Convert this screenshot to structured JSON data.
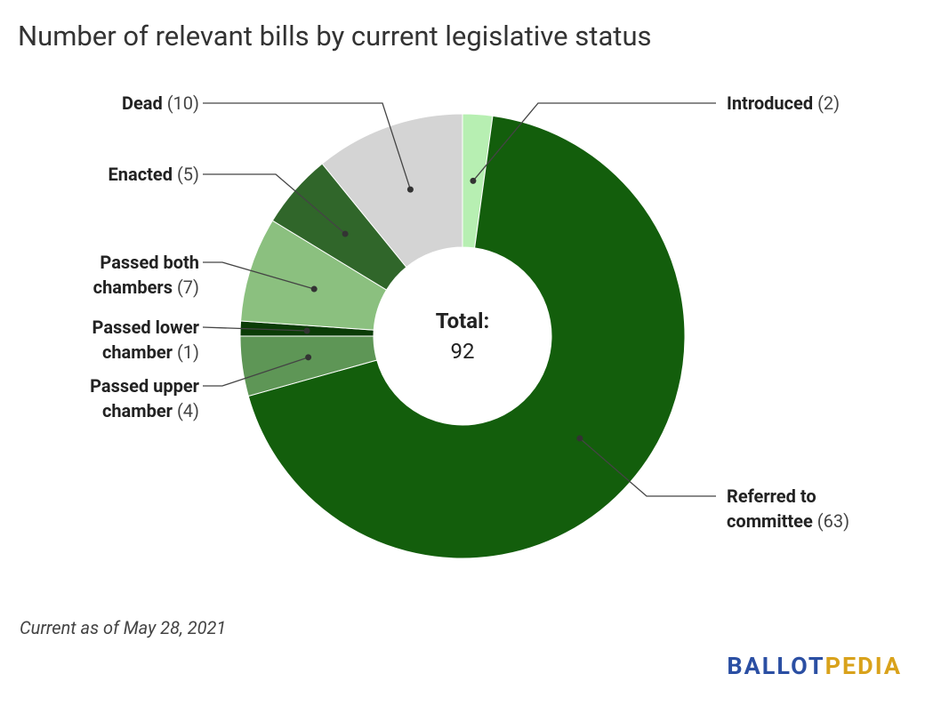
{
  "chart_data": {
    "type": "donut",
    "title": "Number of relevant bills by current legislative status",
    "categories": [
      "Introduced",
      "Referred to committee",
      "Passed upper chamber",
      "Passed lower chamber",
      "Passed both chambers",
      "Enacted",
      "Dead"
    ],
    "values": [
      2,
      63,
      4,
      1,
      7,
      5,
      10
    ],
    "value_labels": [
      "(2)",
      "(63)",
      "(4)",
      "(1)",
      "(7)",
      "(5)",
      "(10)"
    ],
    "colors": [
      "#b7efb2",
      "#135e0c",
      "#5e9656",
      "#0b3c07",
      "#8bc07f",
      "#30662a",
      "#d4d4d4"
    ],
    "center_label": "Total:",
    "total": 92,
    "footnote": "Current as of May 28, 2021"
  },
  "logo": {
    "part1": "BALLOT",
    "part2": "PEDIA"
  }
}
